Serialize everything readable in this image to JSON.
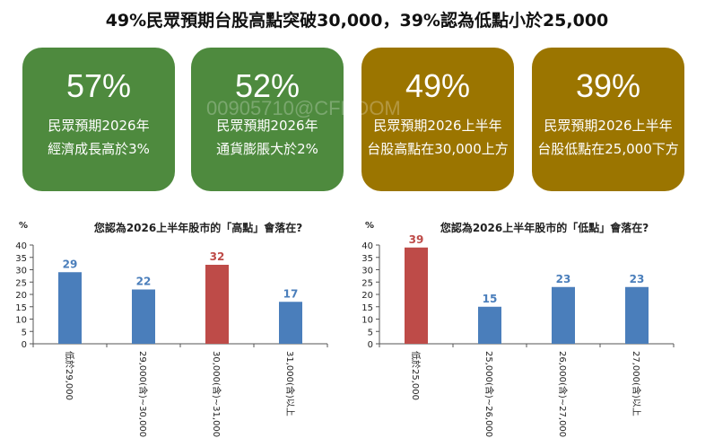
{
  "title": "49%民眾預期台股高點突破30,000，39%認為低點小於25,000",
  "watermark": "00905710@CFHDOM",
  "cards": [
    {
      "value": "57%",
      "line1": "民眾預期2026年",
      "line2": "經濟成長高於3%",
      "color": "#4e8a3e"
    },
    {
      "value": "52%",
      "line1": "民眾預期2026年",
      "line2": "通貨膨脹大於2%",
      "color": "#4e8a3e"
    },
    {
      "value": "49%",
      "line1": "民眾預期2026上半年",
      "line2": "台股高點在30,000上方",
      "color": "#9b7500"
    },
    {
      "value": "39%",
      "line1": "民眾預期2026上半年",
      "line2": "台股低點在25,000下方",
      "color": "#9b7500"
    }
  ],
  "chart_data": [
    {
      "type": "bar",
      "title": "您認為2026上半年股市的「高點」會落在?",
      "ylabel": "%",
      "ylim": [
        0,
        40
      ],
      "yticks": [
        0,
        5,
        10,
        15,
        20,
        25,
        30,
        35,
        40
      ],
      "categories": [
        "低於29,000",
        "29,000(含)~30,000",
        "30,000(含)~31,000",
        "31,000(含)以上"
      ],
      "values": [
        29,
        22,
        32,
        17
      ],
      "colors": [
        "#4a7ebb",
        "#4a7ebb",
        "#be4b48",
        "#4a7ebb"
      ]
    },
    {
      "type": "bar",
      "title": "您認為2026上半年股市的「低點」會落在?",
      "ylabel": "%",
      "ylim": [
        0,
        40
      ],
      "yticks": [
        0,
        5,
        10,
        15,
        20,
        25,
        30,
        35,
        40
      ],
      "categories": [
        "低於25,000",
        "25,000(含)~26,000",
        "26,000(含)~27,000",
        "27,000(含)以上"
      ],
      "values": [
        39,
        15,
        23,
        23
      ],
      "colors": [
        "#be4b48",
        "#4a7ebb",
        "#4a7ebb",
        "#4a7ebb"
      ]
    }
  ]
}
